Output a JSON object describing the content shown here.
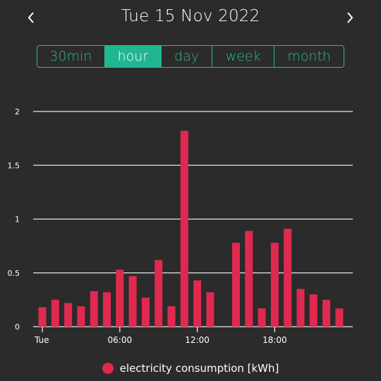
{
  "header": {
    "date": "Tue 15 Nov 2022",
    "prev_icon": "chevron-left-icon",
    "next_icon": "chevron-right-icon"
  },
  "tabs": [
    {
      "label": "30min",
      "active": false
    },
    {
      "label": "hour",
      "active": true
    },
    {
      "label": "day",
      "active": false
    },
    {
      "label": "week",
      "active": false
    },
    {
      "label": "month",
      "active": false
    }
  ],
  "colors": {
    "accent": "#2bb89c",
    "bar": "#e0294f",
    "background": "#2b2b2b",
    "grid": "#e8e8e8"
  },
  "chart_data": {
    "type": "bar",
    "x": [
      0,
      1,
      2,
      3,
      4,
      5,
      6,
      7,
      8,
      9,
      10,
      11,
      12,
      13,
      14,
      15,
      16,
      17,
      18,
      19,
      20,
      21,
      22,
      23
    ],
    "values": [
      0.18,
      0.25,
      0.22,
      0.19,
      0.33,
      0.32,
      0.53,
      0.47,
      0.27,
      0.62,
      0.19,
      1.82,
      0.43,
      0.32,
      0,
      0.78,
      0.89,
      0.17,
      0.78,
      0.91,
      0.35,
      0.3,
      0.25,
      0.17
    ],
    "ylim": [
      0,
      2
    ],
    "yticks": [
      0,
      0.5,
      1,
      1.5,
      2
    ],
    "ytick_labels": [
      "0",
      "0.5",
      "1",
      "1.5",
      "2"
    ],
    "xticks": [
      0,
      6,
      12,
      18
    ],
    "xtick_labels": [
      "Tue",
      "06:00",
      "12:00",
      "18:00"
    ],
    "grid": true,
    "legend": "bottom",
    "series": [
      {
        "name": "electricity consumption [kWh]"
      }
    ]
  }
}
